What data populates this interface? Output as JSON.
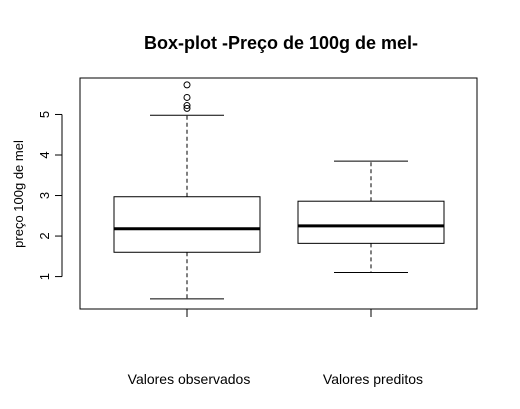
{
  "chart_data": {
    "type": "boxplot",
    "title": "Box-plot -Preço de 100g de mel-",
    "xlabel": "",
    "ylabel": "preço 100g de mel",
    "ylim": [
      0.2,
      5.9
    ],
    "yticks": [
      1,
      2,
      3,
      4,
      5
    ],
    "grid": false,
    "categories": [
      "Valores observados",
      "Valores preditos"
    ],
    "boxes": [
      {
        "whisker_low": 0.45,
        "q1": 1.6,
        "median": 2.18,
        "q3": 2.97,
        "whisker_high": 4.98,
        "outliers": [
          5.15,
          5.22,
          5.42,
          5.73
        ]
      },
      {
        "whisker_low": 1.1,
        "q1": 1.82,
        "median": 2.25,
        "q3": 2.86,
        "whisker_high": 3.85,
        "outliers": []
      }
    ]
  }
}
